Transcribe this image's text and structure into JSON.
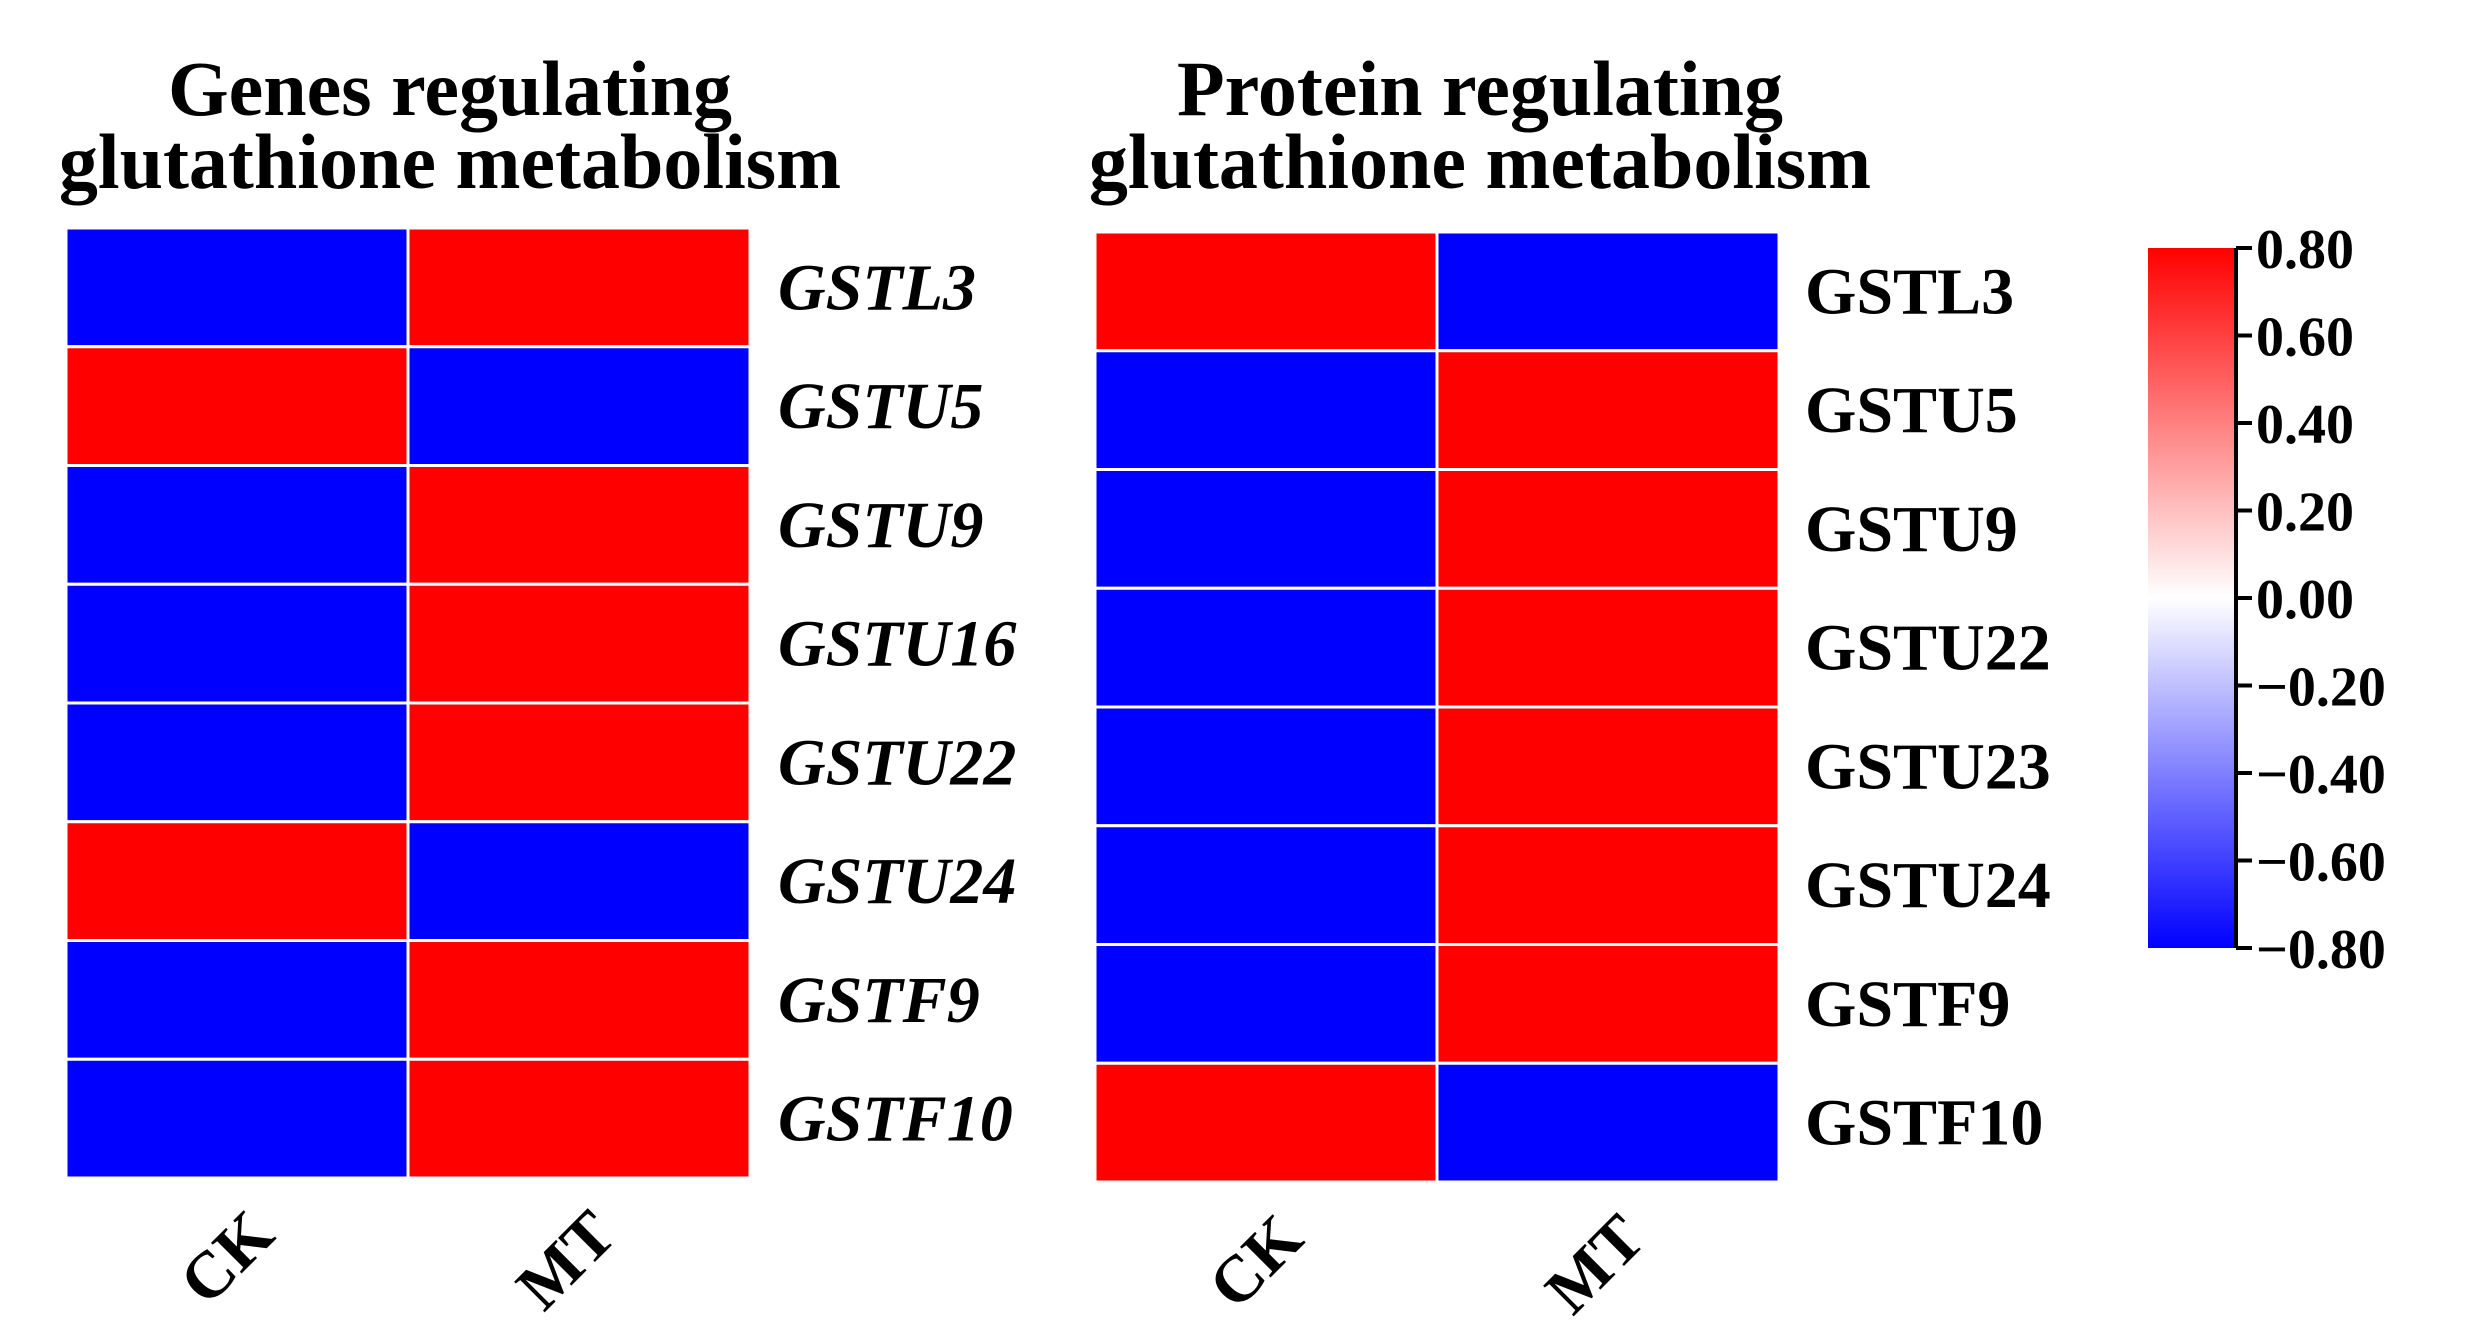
{
  "chart_data": [
    {
      "type": "heatmap",
      "title_lines": [
        "Genes regulating",
        "glutathione metabolism"
      ],
      "columns": [
        "CK",
        "MT"
      ],
      "rows": [
        "GSTL3",
        "GSTU5",
        "GSTU9",
        "GSTU16",
        "GSTU22",
        "GSTU24",
        "GSTF9",
        "GSTF10"
      ],
      "row_label_style": "italic",
      "values": [
        [
          -0.8,
          0.8
        ],
        [
          0.8,
          -0.8
        ],
        [
          -0.8,
          0.8
        ],
        [
          -0.8,
          0.8
        ],
        [
          -0.8,
          0.8
        ],
        [
          0.8,
          -0.8
        ],
        [
          -0.8,
          0.8
        ],
        [
          -0.8,
          0.8
        ]
      ]
    },
    {
      "type": "heatmap",
      "title_lines": [
        "Protein regulating",
        "glutathione metabolism"
      ],
      "columns": [
        "CK",
        "MT"
      ],
      "rows": [
        "GSTL3",
        "GSTU5",
        "GSTU9",
        "GSTU22",
        "GSTU23",
        "GSTU24",
        "GSTF9",
        "GSTF10"
      ],
      "row_label_style": "normal",
      "values": [
        [
          0.8,
          -0.8
        ],
        [
          -0.8,
          0.8
        ],
        [
          -0.8,
          0.8
        ],
        [
          -0.8,
          0.8
        ],
        [
          -0.8,
          0.8
        ],
        [
          -0.8,
          0.8
        ],
        [
          -0.8,
          0.8
        ],
        [
          0.8,
          -0.8
        ]
      ]
    }
  ],
  "colorbar": {
    "min": -0.8,
    "max": 0.8,
    "colors": {
      "low": "#0000ff",
      "mid": "#ffffff",
      "high": "#ff0000"
    },
    "tick_labels": [
      "0.80",
      "0.60",
      "0.40",
      "0.20",
      "0.00",
      "−0.20",
      "−0.40",
      "−0.60",
      "−0.80"
    ]
  }
}
